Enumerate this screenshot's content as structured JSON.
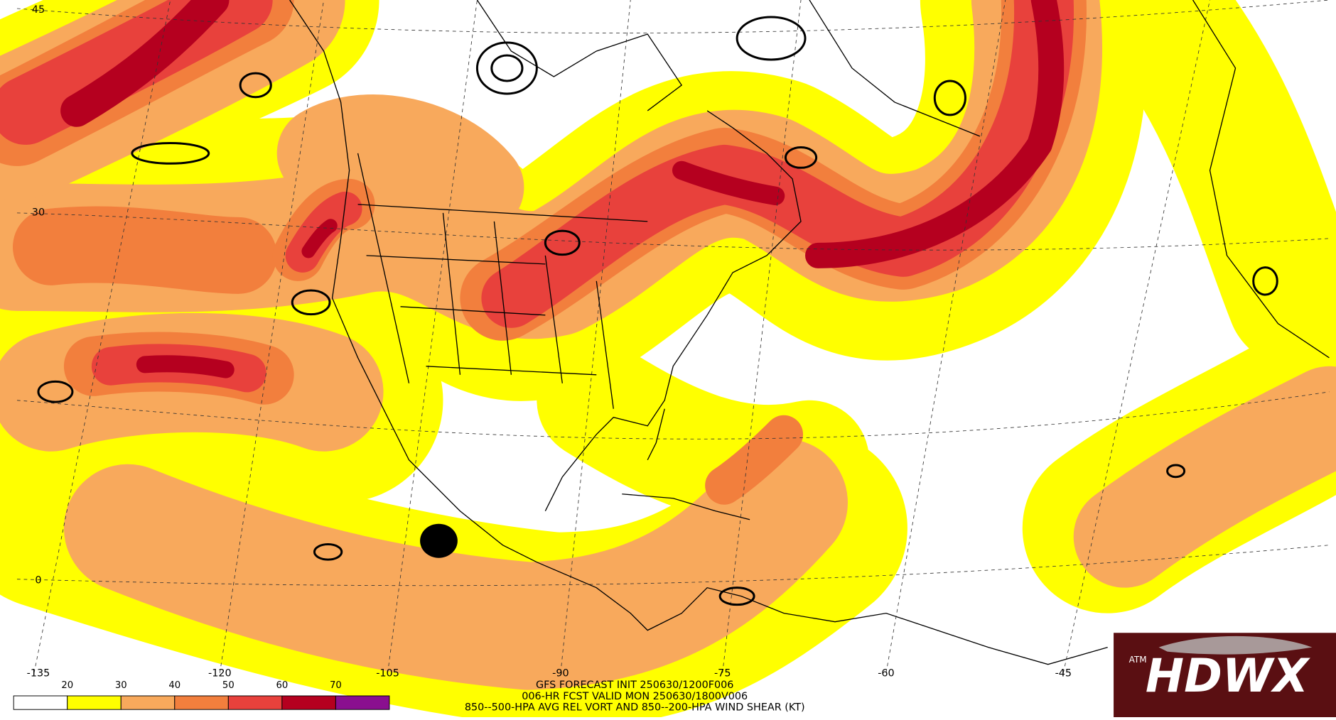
{
  "map": {
    "lat_labels": [
      "45",
      "30",
      "0"
    ],
    "lon_labels": [
      "-135",
      "-120",
      "-105",
      "-90",
      "-75",
      "-60",
      "-45"
    ],
    "legend": {
      "levels": [
        20,
        30,
        40,
        50,
        60,
        70
      ],
      "colors": [
        "#ffffff",
        "#ffff00",
        "#f8a95c",
        "#f27f3d",
        "#e8413c",
        "#b5001f",
        "#8a0f8f"
      ]
    },
    "caption": [
      "GFS FORECAST INIT 250630/1200F006",
      "006-HR FCST VALID MON 250630/1800V006",
      "850--500-HPA AVG REL VORT AND 850--200-HPA WIND SHEAR (KT)"
    ],
    "logo": {
      "badge": "ATM",
      "text": "HDWX"
    }
  }
}
